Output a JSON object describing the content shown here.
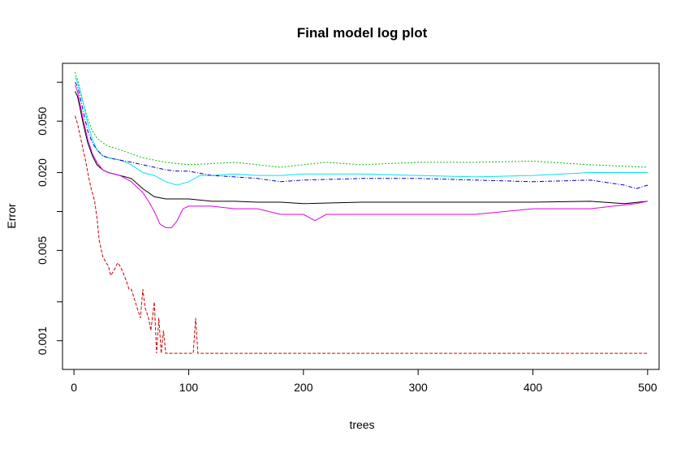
{
  "chart_data": {
    "type": "line",
    "title": "Final model log plot",
    "xlabel": "trees",
    "ylabel": "Error",
    "xlim": [
      -10,
      510
    ],
    "ylim": [
      0.0006,
      0.14
    ],
    "log_y": true,
    "grid": false,
    "x_ticks": [
      0,
      100,
      200,
      300,
      400,
      500
    ],
    "x_tick_labels": [
      "0",
      "100",
      "200",
      "300",
      "400",
      "500"
    ],
    "y_ticks": [
      0.001,
      0.005,
      0.02,
      0.05
    ],
    "y_tick_labels": [
      "0.001",
      "0.005",
      "0.020",
      "0.050"
    ],
    "y_minor_ticks": [
      0.002,
      0.01,
      0.1
    ],
    "series": [
      {
        "color": "#00c000",
        "dash": "2,2",
        "x": [
          1,
          3,
          5,
          8,
          12,
          16,
          20,
          25,
          30,
          40,
          50,
          60,
          70,
          80,
          90,
          100,
          120,
          140,
          160,
          180,
          200,
          220,
          250,
          300,
          350,
          400,
          450,
          500
        ],
        "y": [
          0.12,
          0.105,
          0.09,
          0.07,
          0.052,
          0.042,
          0.037,
          0.034,
          0.032,
          0.03,
          0.028,
          0.026,
          0.025,
          0.024,
          0.0235,
          0.023,
          0.0235,
          0.024,
          0.023,
          0.022,
          0.023,
          0.024,
          0.023,
          0.024,
          0.024,
          0.0245,
          0.023,
          0.022
        ]
      },
      {
        "color": "#00e5ee",
        "dash": "",
        "x": [
          1,
          3,
          5,
          8,
          12,
          16,
          20,
          25,
          30,
          40,
          50,
          60,
          70,
          80,
          90,
          100,
          110,
          120,
          140,
          160,
          180,
          200,
          250,
          300,
          350,
          400,
          450,
          500
        ],
        "y": [
          0.11,
          0.1,
          0.088,
          0.07,
          0.048,
          0.036,
          0.03,
          0.027,
          0.026,
          0.025,
          0.023,
          0.02,
          0.019,
          0.017,
          0.016,
          0.017,
          0.019,
          0.019,
          0.0195,
          0.019,
          0.019,
          0.0195,
          0.0195,
          0.019,
          0.0185,
          0.019,
          0.02,
          0.02
        ]
      },
      {
        "color": "#0000cd",
        "dash": "5,2,1,2",
        "x": [
          1,
          3,
          5,
          8,
          12,
          16,
          20,
          25,
          30,
          40,
          50,
          60,
          70,
          80,
          90,
          100,
          120,
          140,
          160,
          180,
          200,
          250,
          300,
          350,
          400,
          450,
          480,
          490,
          500
        ],
        "y": [
          0.1,
          0.093,
          0.08,
          0.06,
          0.042,
          0.034,
          0.03,
          0.027,
          0.026,
          0.025,
          0.024,
          0.023,
          0.022,
          0.021,
          0.0205,
          0.0205,
          0.019,
          0.0185,
          0.018,
          0.017,
          0.0175,
          0.018,
          0.018,
          0.0175,
          0.017,
          0.0175,
          0.016,
          0.015,
          0.016
        ]
      },
      {
        "color": "#000000",
        "dash": "",
        "x": [
          1,
          3,
          5,
          8,
          12,
          16,
          20,
          25,
          30,
          40,
          50,
          60,
          70,
          80,
          90,
          100,
          120,
          140,
          160,
          180,
          200,
          250,
          300,
          350,
          400,
          450,
          480,
          500
        ],
        "y": [
          0.085,
          0.078,
          0.065,
          0.048,
          0.034,
          0.027,
          0.023,
          0.021,
          0.02,
          0.019,
          0.018,
          0.015,
          0.013,
          0.0125,
          0.0125,
          0.0125,
          0.012,
          0.012,
          0.0118,
          0.0118,
          0.0115,
          0.0118,
          0.0118,
          0.0118,
          0.0118,
          0.012,
          0.0115,
          0.012
        ]
      },
      {
        "color": "#e000e0",
        "dash": "",
        "x": [
          1,
          3,
          5,
          8,
          12,
          16,
          20,
          25,
          30,
          40,
          50,
          60,
          65,
          70,
          75,
          80,
          85,
          90,
          95,
          100,
          120,
          140,
          160,
          180,
          200,
          210,
          220,
          250,
          300,
          350,
          400,
          450,
          470,
          490,
          500
        ],
        "y": [
          0.095,
          0.085,
          0.07,
          0.052,
          0.036,
          0.028,
          0.024,
          0.021,
          0.02,
          0.019,
          0.017,
          0.014,
          0.012,
          0.01,
          0.008,
          0.0075,
          0.0075,
          0.0085,
          0.0105,
          0.011,
          0.011,
          0.0105,
          0.0105,
          0.0095,
          0.0095,
          0.0085,
          0.0095,
          0.0095,
          0.0095,
          0.0095,
          0.0105,
          0.0105,
          0.011,
          0.0115,
          0.012
        ]
      },
      {
        "color": "#cc0000",
        "dash": "4,2",
        "x": [
          1,
          3,
          5,
          8,
          10,
          12,
          15,
          18,
          20,
          22,
          25,
          28,
          30,
          32,
          35,
          38,
          40,
          42,
          45,
          48,
          50,
          52,
          55,
          58,
          60,
          62,
          65,
          67,
          70,
          72,
          74,
          76,
          78,
          80,
          100,
          104,
          106,
          108,
          110,
          200,
          300,
          400,
          500
        ],
        "y": [
          0.055,
          0.048,
          0.04,
          0.03,
          0.025,
          0.02,
          0.015,
          0.012,
          0.009,
          0.006,
          0.0045,
          0.004,
          0.0038,
          0.0032,
          0.0035,
          0.004,
          0.0038,
          0.0035,
          0.003,
          0.0025,
          0.0025,
          0.0022,
          0.0018,
          0.0015,
          0.0025,
          0.0018,
          0.0015,
          0.0012,
          0.002,
          0.0008,
          0.0015,
          0.0008,
          0.0012,
          0.0008,
          0.0008,
          0.0008,
          0.0015,
          0.0008,
          0.0008,
          0.0008,
          0.0008,
          0.0008,
          0.0008
        ]
      }
    ]
  }
}
